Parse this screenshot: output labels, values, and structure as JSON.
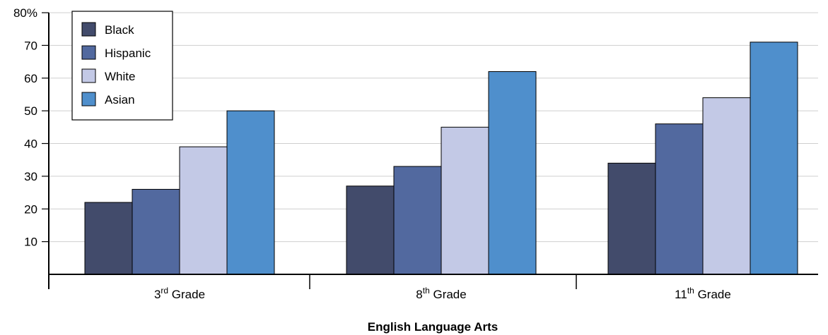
{
  "chart_data": {
    "type": "bar",
    "categories": [
      {
        "base": "3",
        "sup": "rd",
        "rest": " Grade"
      },
      {
        "base": "8",
        "sup": "th",
        "rest": " Grade"
      },
      {
        "base": "11",
        "sup": "th",
        "rest": " Grade"
      }
    ],
    "series": [
      {
        "name": "Black",
        "color": "#424b6b",
        "values": [
          22,
          27,
          34
        ]
      },
      {
        "name": "Hispanic",
        "color": "#52699f",
        "values": [
          26,
          33,
          46
        ]
      },
      {
        "name": "White",
        "color": "#c3c9e6",
        "values": [
          39,
          45,
          54
        ]
      },
      {
        "name": "Asian",
        "color": "#4f8fcc",
        "values": [
          50,
          62,
          71
        ]
      }
    ],
    "yticks": [
      "10",
      "20",
      "30",
      "40",
      "50",
      "60",
      "70",
      "80%"
    ],
    "ytick_values": [
      10,
      20,
      30,
      40,
      50,
      60,
      70,
      80
    ],
    "ylim": [
      0,
      80
    ],
    "xlabel": "English Language Arts",
    "ylabel": "",
    "grid": true,
    "legend_position": "top-left"
  }
}
